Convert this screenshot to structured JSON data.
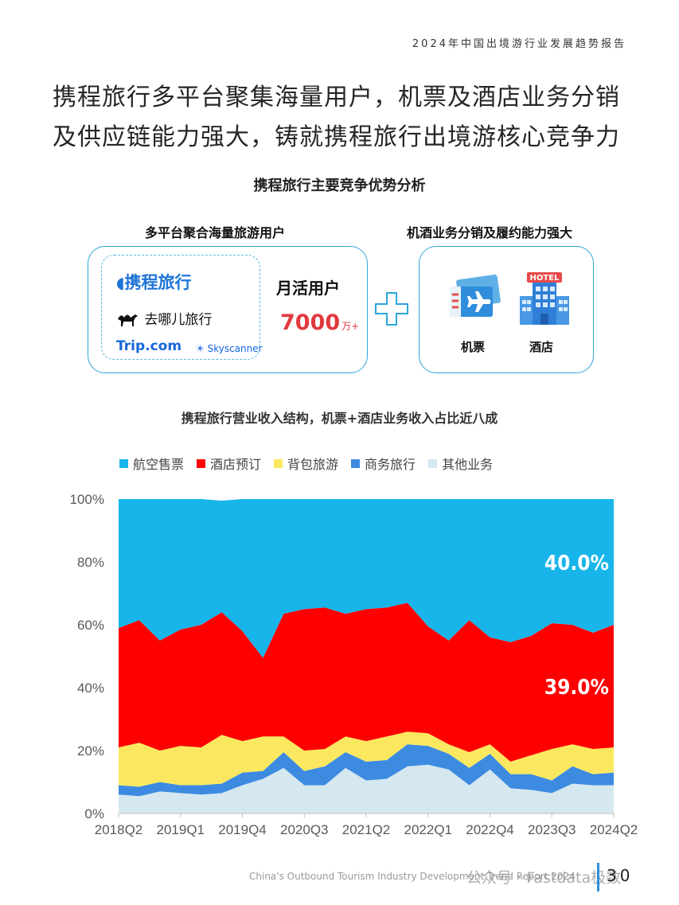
{
  "header": {
    "report_title": "2024年中国出境游行业发展趋势报告"
  },
  "headline": {
    "line1": "携程旅行多平台聚集海量用户，机票及酒店业务分销",
    "line2": "及供应链能力强大，铸就携程旅行出境游核心竞争力"
  },
  "advantages": {
    "title": "携程旅行主要竞争优势分析",
    "left": {
      "caption": "多平台聚合海量旅游用户",
      "logos": [
        "携程旅行",
        "去哪儿旅行",
        "Trip.com",
        "Skyscanner"
      ],
      "mau_label": "月活用户",
      "mau_value": "7000",
      "mau_unit": "万+"
    },
    "plus": "+",
    "right": {
      "caption": "机酒业务分销及履约能力强大",
      "ticket_label": "机票",
      "hotel_sign": "HOTEL",
      "hotel_label": "酒店"
    }
  },
  "chart_caption": "携程旅行营业收入结构，机票+酒店业务收入占比近八成",
  "colors": {
    "air": "#18b5ea",
    "hotel": "#ff0000",
    "package": "#fbe860",
    "business": "#3c8be0",
    "other": "#d5e7ef"
  },
  "chart_data": {
    "type": "area",
    "stacked": true,
    "x": [
      "2018Q2",
      "2018Q3",
      "2018Q4",
      "2019Q1",
      "2019Q2",
      "2019Q3",
      "2019Q4",
      "2020Q1",
      "2020Q2",
      "2020Q3",
      "2020Q4",
      "2021Q1",
      "2021Q2",
      "2021Q3",
      "2021Q4",
      "2022Q1",
      "2022Q2",
      "2022Q3",
      "2022Q4",
      "2023Q1",
      "2023Q2",
      "2023Q3",
      "2023Q4",
      "2024Q1",
      "2024Q2"
    ],
    "x_tick_labels": [
      "2018Q2",
      "2019Q1",
      "2019Q4",
      "2020Q3",
      "2021Q2",
      "2022Q1",
      "2022Q4",
      "2023Q3",
      "2024Q2"
    ],
    "ylim": [
      0,
      100
    ],
    "y_ticks": [
      "0%",
      "20%",
      "40%",
      "60%",
      "80%",
      "100%"
    ],
    "legend_position": "top",
    "series": [
      {
        "name": "其他业务",
        "color_key": "other",
        "values": [
          6,
          5.5,
          7,
          6.5,
          6,
          6.5,
          9,
          11,
          14.5,
          9,
          9,
          14.5,
          10.5,
          11,
          15,
          15.5,
          14,
          9,
          14,
          8,
          7.5,
          6.5,
          9.5,
          9,
          9
        ]
      },
      {
        "name": "商务旅行",
        "color_key": "business",
        "values": [
          3,
          3,
          3,
          2.5,
          3,
          3,
          4,
          2.5,
          5,
          4.5,
          6,
          5,
          6,
          6,
          7,
          6,
          5,
          5.5,
          5,
          4.5,
          5,
          4,
          5.5,
          3.5,
          4
        ]
      },
      {
        "name": "背包旅游",
        "color_key": "package",
        "values": [
          12,
          14,
          10,
          12.5,
          12,
          15.5,
          10,
          11,
          5,
          6.5,
          5.5,
          5,
          6.5,
          7.5,
          4,
          4,
          3,
          5,
          3,
          4,
          6,
          10,
          7,
          8,
          8
        ]
      },
      {
        "name": "酒店预订",
        "color_key": "hotel",
        "values": [
          38,
          39,
          35,
          37,
          39,
          39,
          35,
          25,
          39,
          45,
          45,
          39,
          42,
          41,
          41,
          34,
          33,
          42,
          34,
          38,
          38,
          40,
          38,
          37,
          39
        ]
      },
      {
        "name": "航空售票",
        "color_key": "air",
        "values": [
          41,
          38.5,
          45,
          41.5,
          40,
          35.5,
          42,
          50.5,
          36.5,
          35,
          34.5,
          36.5,
          35,
          34.5,
          33,
          40.5,
          45,
          38.5,
          44,
          45.5,
          43.5,
          39.5,
          40,
          42.5,
          40
        ]
      }
    ],
    "annotations": [
      "40.0%",
      "39.0%"
    ]
  },
  "footer": {
    "english_title": "China's Outbound Tourism Industry Development Trend Report 2024",
    "watermark": "公众号 · Fastdata极数",
    "page_number": "30"
  }
}
